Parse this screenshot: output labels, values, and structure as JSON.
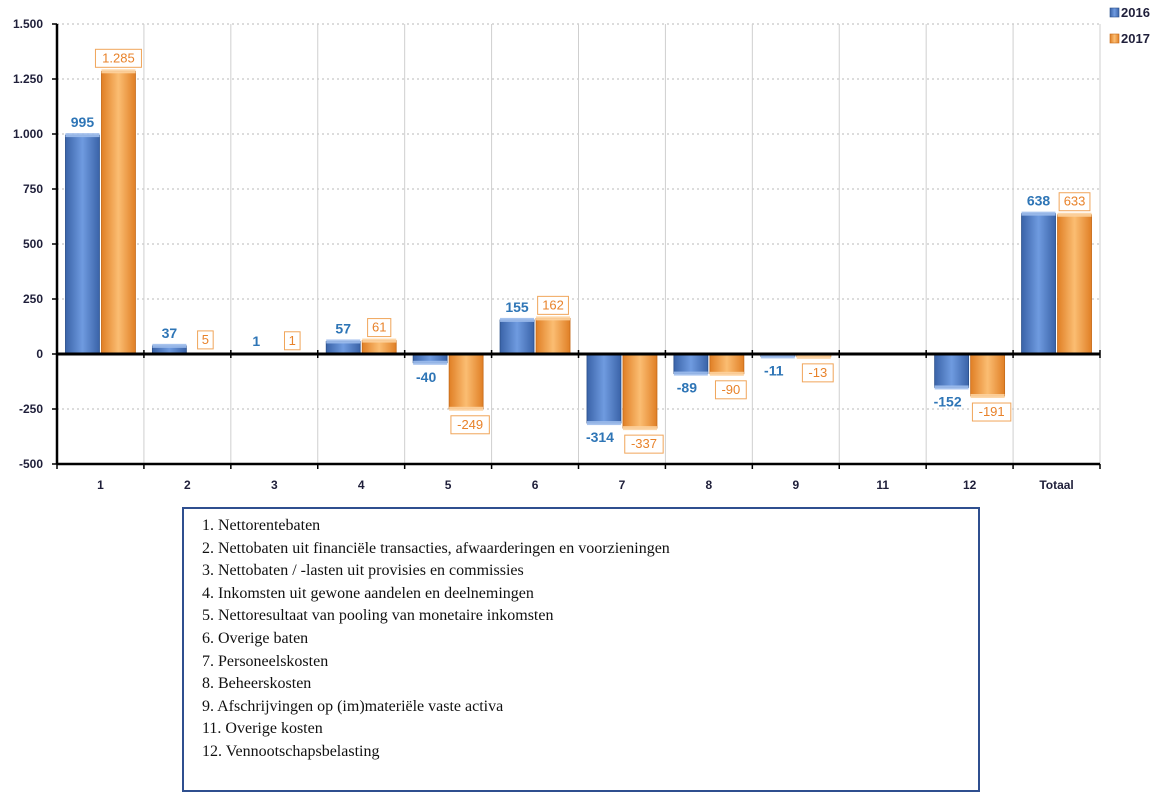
{
  "chart_data": {
    "type": "bar",
    "categories": [
      "1",
      "2",
      "3",
      "4",
      "5",
      "6",
      "7",
      "8",
      "9",
      "11",
      "12",
      "Totaal"
    ],
    "series": [
      {
        "name": "2016",
        "color": "#4a7cc8",
        "values": [
          995,
          37,
          1,
          57,
          -40,
          155,
          -314,
          -89,
          -11,
          null,
          -152,
          638
        ],
        "labels": [
          "995",
          "37",
          "1",
          "57",
          "-40",
          "155",
          "-314",
          "-89",
          "-11",
          "",
          "-152",
          "638"
        ]
      },
      {
        "name": "2017",
        "color": "#f7a146",
        "values": [
          1285,
          5,
          1,
          61,
          -249,
          162,
          -337,
          -90,
          -13,
          null,
          -191,
          633
        ],
        "labels": [
          "1.285",
          "5",
          "1",
          "61",
          "-249",
          "162",
          "-337",
          "-90",
          "-13",
          "",
          "-191",
          "633"
        ]
      }
    ],
    "y_ticks": [
      1500,
      1250,
      1000,
      750,
      500,
      250,
      0,
      -250,
      -500
    ],
    "y_tick_labels": [
      "1.500",
      "1.250",
      "1.000",
      "750",
      "500",
      "250",
      "0",
      "-250",
      "-500"
    ],
    "ylim": [
      -500,
      1500
    ],
    "grid": true,
    "legend_position": "top-right"
  },
  "legend_items": [
    "1. Nettorentebaten",
    "2. Nettobaten uit financiële transacties, afwaarderingen en voorzieningen",
    "3. Nettobaten / -lasten uit provisies en commissies",
    "4. Inkomsten uit gewone aandelen en deelnemingen",
    "5. Nettoresultaat van pooling  van monetaire inkomsten",
    "6. Overige baten",
    "7. Personeelskosten",
    "8. Beheerskosten",
    "9. Afschrijvingen op (im)materiële vaste activa",
    "11. Overige kosten",
    "12. Vennootschapsbelasting"
  ]
}
